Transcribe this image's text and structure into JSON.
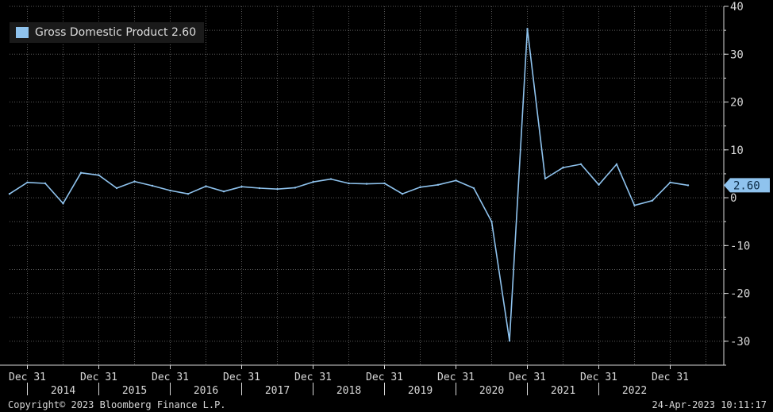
{
  "chart_data": {
    "type": "line",
    "legend": {
      "label": "Gross Domestic Product",
      "last_value": "2.60",
      "position": "top-left"
    },
    "colors": {
      "line": "#8fc3ee",
      "background": "#000000",
      "grid": "#5a5a5a",
      "axis": "#d8d8d8",
      "last_badge": "#8fc3ee"
    },
    "grid": true,
    "y_axis": {
      "side": "right",
      "ylim": [
        -35,
        40
      ],
      "ticks": [
        40,
        30,
        20,
        10,
        0,
        -10,
        -20,
        -30
      ],
      "tick_labels": [
        "40",
        "30",
        "20",
        "10",
        "0",
        "-10",
        "-20",
        "-30"
      ]
    },
    "x_axis": {
      "quarter_labels": [
        "Dec 31",
        "Dec 31",
        "Dec 31",
        "Dec 31",
        "Dec 31",
        "Dec 31",
        "Dec 31",
        "Dec 31",
        "Dec 31",
        "Dec 31"
      ],
      "years": [
        "2014",
        "2015",
        "2016",
        "2017",
        "2018",
        "2019",
        "2020",
        "2021",
        "2022"
      ]
    },
    "last_value_badge": "2.60",
    "series": [
      {
        "name": "Gross Domestic Product",
        "x": [
          "2013Q3",
          "2013Q4",
          "2014Q1",
          "2014Q2",
          "2014Q3",
          "2014Q4",
          "2015Q1",
          "2015Q2",
          "2015Q3",
          "2015Q4",
          "2016Q1",
          "2016Q2",
          "2016Q3",
          "2016Q4",
          "2017Q1",
          "2017Q2",
          "2017Q3",
          "2017Q4",
          "2018Q1",
          "2018Q2",
          "2018Q3",
          "2018Q4",
          "2019Q1",
          "2019Q2",
          "2019Q3",
          "2019Q4",
          "2020Q1",
          "2020Q2",
          "2020Q3",
          "2020Q4",
          "2021Q1",
          "2021Q2",
          "2021Q3",
          "2021Q4",
          "2022Q1",
          "2022Q2",
          "2022Q3",
          "2022Q4",
          "2023Q1"
        ],
        "values": [
          0.8,
          3.2,
          3.0,
          -1.2,
          5.2,
          4.7,
          2.0,
          3.4,
          2.5,
          1.5,
          0.8,
          2.4,
          1.3,
          2.3,
          2.0,
          1.8,
          2.1,
          3.3,
          3.9,
          3.0,
          2.9,
          3.0,
          0.8,
          2.2,
          2.7,
          3.6,
          2.0,
          -5.0,
          -29.9,
          35.3,
          4.0,
          6.3,
          7.0,
          2.7,
          7.0,
          -1.6,
          -0.6,
          3.2,
          2.6
        ]
      }
    ]
  },
  "footer": {
    "copyright": "Copyright© 2023 Bloomberg Finance L.P.",
    "timestamp": "24-Apr-2023 10:11:17"
  }
}
